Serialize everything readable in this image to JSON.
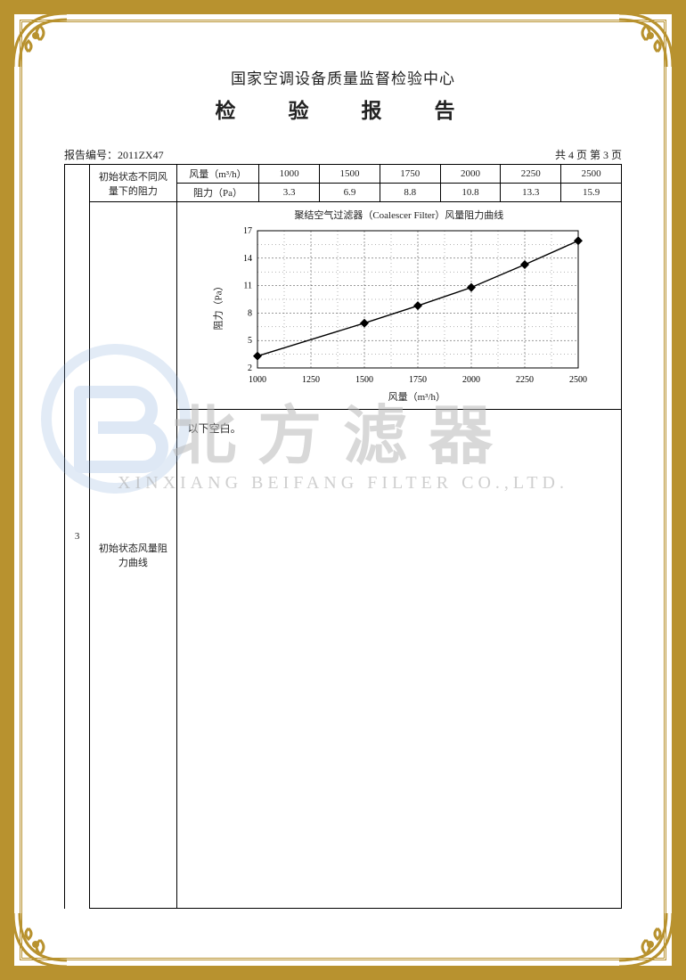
{
  "header": {
    "organization": "国家空调设备质量监督检验中心",
    "title": "检　验　报　告"
  },
  "meta": {
    "report_no_label": "报告编号：",
    "report_no": "2011ZX47",
    "page_info": "共 4 页 第 3 页"
  },
  "row_number": "3",
  "row_desc_line1": "初始状态风量阻",
  "row_desc_line2": "力曲线",
  "param_header_top": "初始状态不同风",
  "param_header_bot": "量下的阻力",
  "data_table": {
    "col1_label": "风量（m³/h）",
    "col2_label": "阻力（Pa）",
    "flow_values": [
      "1000",
      "1500",
      "1750",
      "2000",
      "2250",
      "2500"
    ],
    "resist_values": [
      "3.3",
      "6.9",
      "8.8",
      "10.8",
      "13.3",
      "15.9"
    ]
  },
  "chart": {
    "type": "line",
    "title": "聚结空气过滤器（Coalescer Filter）风量阻力曲线",
    "x_label": "风量（m³/h）",
    "y_label": "阻力（Pa）",
    "xlim": [
      1000,
      2500
    ],
    "xtick_step": 250,
    "ylim": [
      2,
      17
    ],
    "ytick_step": 3,
    "points_x": [
      1000,
      1500,
      1750,
      2000,
      2250,
      2500
    ],
    "points_y": [
      3.3,
      6.9,
      8.8,
      10.8,
      13.3,
      15.9
    ],
    "line_color": "#000000",
    "marker": "diamond",
    "marker_size": 5,
    "grid_color": "#000000",
    "grid_dash": "2 2",
    "background_color": "#ffffff",
    "axis_fontsize": 10,
    "title_fontsize": 11
  },
  "blank_text": "以下空白。",
  "watermark": {
    "main": "北方滤器",
    "sub": "XINXIANG BEIFANG FILTER CO.,LTD.",
    "logo_color": "#7fa8d9",
    "text_color": "#b9b9b9"
  },
  "frame": {
    "gold_light": "#d4af37",
    "gold_dark": "#b8922f"
  }
}
